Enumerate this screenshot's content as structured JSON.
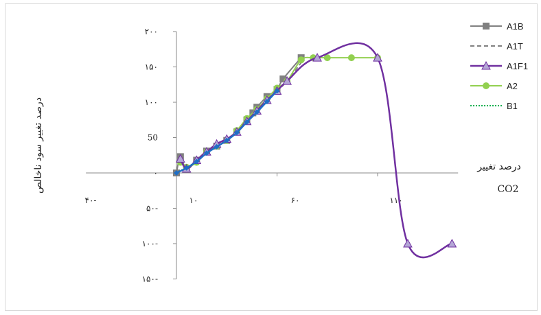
{
  "chart_data": {
    "type": "line",
    "title": "",
    "ylabel": "درصد تغییر سود ناخالص",
    "xlabel_line1": "درصد تغییر",
    "xlabel_line2": "CO2",
    "xlim": [
      -40,
      140
    ],
    "ylim": [
      -150,
      200
    ],
    "x_ticks": [
      {
        "value": -40,
        "label": "۴۰-"
      },
      {
        "value": 10,
        "label": "۱۰"
      },
      {
        "value": 60,
        "label": "۶۰"
      },
      {
        "value": 110,
        "label": "۱۱۰"
      }
    ],
    "y_ticks": [
      {
        "value": 200,
        "label": "۲۰۰"
      },
      {
        "value": 150,
        "label": "۱۵۰"
      },
      {
        "value": 100,
        "label": "۱۰۰"
      },
      {
        "value": 50,
        "label": "50"
      },
      {
        "value": 0,
        "label": "۰"
      },
      {
        "value": -50,
        "label": "۵۰-"
      },
      {
        "value": -100,
        "label": "۱۰۰-"
      },
      {
        "value": -150,
        "label": "۱۵۰-"
      }
    ],
    "grid": false,
    "legend_position": "top-right",
    "series": [
      {
        "name": "A1B",
        "color": "#808080",
        "style": "solid",
        "marker": "square",
        "points": [
          [
            5,
            0
          ],
          [
            7,
            23
          ],
          [
            10,
            5
          ],
          [
            15,
            18
          ],
          [
            20,
            31
          ],
          [
            25,
            38
          ],
          [
            30,
            46
          ],
          [
            35,
            58
          ],
          [
            40,
            75
          ],
          [
            43,
            85
          ],
          [
            45,
            93
          ],
          [
            50,
            108
          ],
          [
            55,
            118
          ],
          [
            58,
            133
          ],
          [
            67,
            163
          ]
        ]
      },
      {
        "name": "A1T",
        "color": "#808080",
        "style": "dashed",
        "marker": "none",
        "points": [
          [
            5,
            0
          ],
          [
            10,
            7
          ],
          [
            15,
            16
          ],
          [
            20,
            28
          ],
          [
            25,
            38
          ],
          [
            30,
            47
          ],
          [
            35,
            58
          ],
          [
            40,
            73
          ],
          [
            45,
            88
          ],
          [
            50,
            103
          ],
          [
            55,
            116
          ],
          [
            60,
            130
          ],
          [
            67,
            156
          ]
        ]
      },
      {
        "name": "A1F1",
        "color": "#7030a0",
        "style": "solid",
        "marker": "triangle",
        "points": [
          [
            7,
            20
          ],
          [
            10,
            6
          ],
          [
            15,
            18
          ],
          [
            20,
            30
          ],
          [
            25,
            41
          ],
          [
            30,
            48
          ],
          [
            35,
            58
          ],
          [
            40,
            73
          ],
          [
            45,
            88
          ],
          [
            50,
            103
          ],
          [
            55,
            116
          ],
          [
            60,
            130
          ],
          [
            75,
            163
          ],
          [
            105,
            163
          ],
          [
            120,
            -100
          ],
          [
            142,
            -100
          ]
        ]
      },
      {
        "name": "A2",
        "color": "#92d050",
        "style": "solid",
        "marker": "circle",
        "points": [
          [
            7,
            15
          ],
          [
            10,
            8
          ],
          [
            15,
            15
          ],
          [
            20,
            30
          ],
          [
            25,
            38
          ],
          [
            30,
            46
          ],
          [
            35,
            60
          ],
          [
            40,
            77
          ],
          [
            45,
            90
          ],
          [
            50,
            105
          ],
          [
            55,
            120
          ],
          [
            60,
            130
          ],
          [
            67,
            160
          ],
          [
            73,
            163
          ],
          [
            80,
            163
          ],
          [
            92,
            163
          ],
          [
            105,
            163
          ]
        ]
      },
      {
        "name": "B1",
        "color": "#00b050",
        "style": "dotted",
        "marker": "none",
        "points": [
          [
            5,
            0
          ],
          [
            10,
            8
          ],
          [
            15,
            16
          ],
          [
            20,
            28
          ],
          [
            25,
            37
          ],
          [
            30,
            46
          ],
          [
            35,
            57
          ],
          [
            40,
            72
          ],
          [
            45,
            86
          ],
          [
            50,
            102
          ]
        ]
      },
      {
        "name": "",
        "color": "#1f6fc5",
        "style": "solid",
        "marker": "diamond",
        "points": [
          [
            5,
            0
          ],
          [
            10,
            7
          ],
          [
            15,
            16
          ],
          [
            20,
            28
          ],
          [
            25,
            37
          ],
          [
            30,
            46
          ],
          [
            35,
            57
          ],
          [
            40,
            72
          ],
          [
            45,
            86
          ],
          [
            50,
            101
          ],
          [
            55,
            116
          ]
        ]
      }
    ]
  }
}
